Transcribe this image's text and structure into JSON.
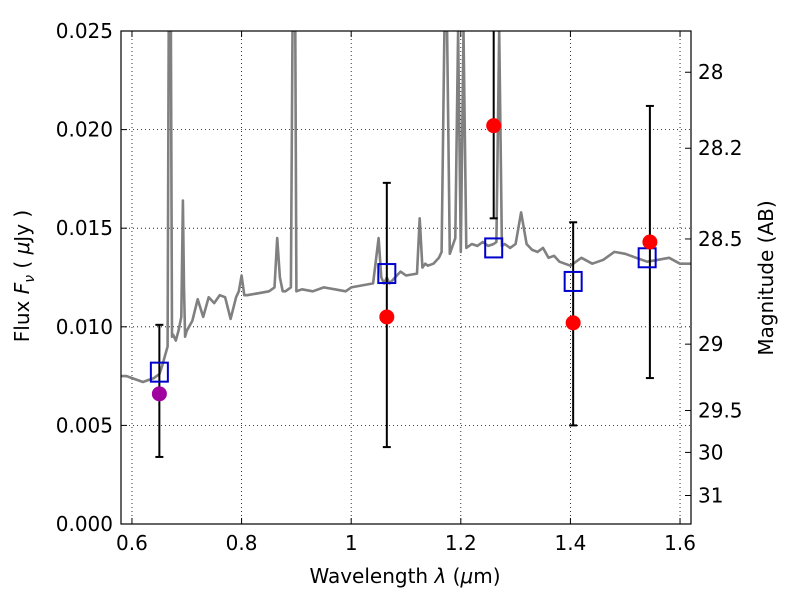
{
  "chart_data": {
    "type": "scatter",
    "title": "",
    "xlabel": "Wavelength  λ (μm)",
    "ylabel": "Flux  F_ν  ( μJy )",
    "ylabel_parts": {
      "prefix": "Flux  ",
      "symbol": "F",
      "subscript": "ν",
      "open": "  ( ",
      "mu": "μ",
      "unit": "Jy )"
    },
    "xlabel_parts": {
      "prefix": "Wavelength  ",
      "symbol": "λ",
      "open": " (",
      "mu": "μ",
      "unit": "m)"
    },
    "ylabel_right": "Magnitude (AB)",
    "xlim": [
      0.58,
      1.62
    ],
    "ylim": [
      0,
      0.025
    ],
    "grid": true,
    "grid_style": "dotted",
    "x_ticks": [
      {
        "value": 0.6,
        "label": "0.6"
      },
      {
        "value": 0.8,
        "label": "0.8"
      },
      {
        "value": 1.0,
        "label": "1"
      },
      {
        "value": 1.2,
        "label": "1.2"
      },
      {
        "value": 1.4,
        "label": "1.4"
      },
      {
        "value": 1.6,
        "label": "1.6"
      }
    ],
    "y_ticks": [
      {
        "value": 0.0,
        "label": "0.000"
      },
      {
        "value": 0.005,
        "label": "0.005"
      },
      {
        "value": 0.01,
        "label": "0.010"
      },
      {
        "value": 0.015,
        "label": "0.015"
      },
      {
        "value": 0.02,
        "label": "0.020"
      },
      {
        "value": 0.025,
        "label": "0.025"
      }
    ],
    "right_ticks": [
      {
        "label": "28",
        "mag": 28.0
      },
      {
        "label": "28.2",
        "mag": 28.2
      },
      {
        "label": "28.5",
        "mag": 28.5
      },
      {
        "label": "29",
        "mag": 29.0
      },
      {
        "label": "29.5",
        "mag": 29.5
      },
      {
        "label": "30",
        "mag": 30.0
      },
      {
        "label": "31",
        "mag": 31.0
      }
    ],
    "series": [
      {
        "style": "line",
        "color": "#808080",
        "x": [
          0.58,
          0.59,
          0.6,
          0.61,
          0.62,
          0.63,
          0.64,
          0.65,
          0.655,
          0.66,
          0.665,
          0.667,
          0.669,
          0.671,
          0.673,
          0.675,
          0.68,
          0.685,
          0.69,
          0.693,
          0.695,
          0.697,
          0.7,
          0.71,
          0.72,
          0.73,
          0.74,
          0.75,
          0.76,
          0.77,
          0.78,
          0.79,
          0.795,
          0.8,
          0.805,
          0.81,
          0.83,
          0.85,
          0.86,
          0.865,
          0.87,
          0.875,
          0.88,
          0.89,
          0.893,
          0.895,
          0.898,
          0.9,
          0.91,
          0.93,
          0.95,
          0.97,
          0.99,
          1.0,
          1.02,
          1.04,
          1.05,
          1.055,
          1.06,
          1.065,
          1.07,
          1.08,
          1.09,
          1.1,
          1.12,
          1.125,
          1.13,
          1.135,
          1.14,
          1.15,
          1.16,
          1.165,
          1.17,
          1.175,
          1.18,
          1.19,
          1.195,
          1.2,
          1.205,
          1.21,
          1.22,
          1.23,
          1.24,
          1.25,
          1.26,
          1.265,
          1.27,
          1.275,
          1.28,
          1.29,
          1.3,
          1.31,
          1.32,
          1.33,
          1.34,
          1.35,
          1.36,
          1.37,
          1.38,
          1.39,
          1.4,
          1.42,
          1.44,
          1.46,
          1.48,
          1.5,
          1.52,
          1.54,
          1.56,
          1.58,
          1.6,
          1.62
        ],
        "y": [
          0.0075,
          0.0075,
          0.0074,
          0.0073,
          0.0072,
          0.0073,
          0.0074,
          0.0076,
          0.008,
          0.0085,
          0.009,
          0.025,
          0.025,
          0.025,
          0.0095,
          0.0096,
          0.0093,
          0.0098,
          0.0105,
          0.0164,
          0.012,
          0.0095,
          0.0098,
          0.0103,
          0.0114,
          0.0105,
          0.0115,
          0.0112,
          0.0116,
          0.0115,
          0.0104,
          0.0115,
          0.0118,
          0.0126,
          0.0116,
          0.0116,
          0.0117,
          0.0118,
          0.012,
          0.0145,
          0.0125,
          0.0118,
          0.0118,
          0.012,
          0.025,
          0.025,
          0.025,
          0.0118,
          0.0119,
          0.0118,
          0.012,
          0.0119,
          0.0118,
          0.012,
          0.0121,
          0.0122,
          0.0145,
          0.0125,
          0.0122,
          0.0125,
          0.0122,
          0.0125,
          0.0128,
          0.0126,
          0.0127,
          0.0155,
          0.013,
          0.0132,
          0.0131,
          0.0132,
          0.0135,
          0.0138,
          0.025,
          0.025,
          0.0137,
          0.0145,
          0.025,
          0.0138,
          0.025,
          0.014,
          0.0142,
          0.0141,
          0.0143,
          0.0141,
          0.0142,
          0.0143,
          0.025,
          0.0141,
          0.0142,
          0.014,
          0.0142,
          0.0158,
          0.0142,
          0.0139,
          0.0138,
          0.014,
          0.0135,
          0.0136,
          0.0133,
          0.0132,
          0.0131,
          0.0135,
          0.0132,
          0.0134,
          0.0138,
          0.0137,
          0.0135,
          0.0133,
          0.0134,
          0.0135,
          0.0132,
          0.0132
        ]
      }
    ],
    "model_boxes": {
      "marker": "open-square",
      "color": "#0000cc",
      "x": [
        0.65,
        1.065,
        1.26,
        1.405,
        1.54
      ],
      "y": [
        0.0077,
        0.0127,
        0.014,
        0.0123,
        0.0135
      ]
    },
    "observed_points": {
      "marker": "filled-circle",
      "x": [
        0.65,
        1.065,
        1.26,
        1.405,
        1.545
      ],
      "y": [
        0.0066,
        0.0105,
        0.0202,
        0.0102,
        0.0143
      ],
      "colors": [
        "#a000a0",
        "#ff0000",
        "#ff0000",
        "#ff0000",
        "#ff0000"
      ]
    },
    "error_bars": {
      "color": "#000000",
      "x": [
        0.65,
        1.065,
        1.26,
        1.405,
        1.545
      ],
      "lower": [
        0.0034,
        0.0039,
        0.0155,
        0.005,
        0.0074
      ],
      "upper": [
        0.0101,
        0.0173,
        0.025,
        0.0153,
        0.0212
      ]
    }
  }
}
